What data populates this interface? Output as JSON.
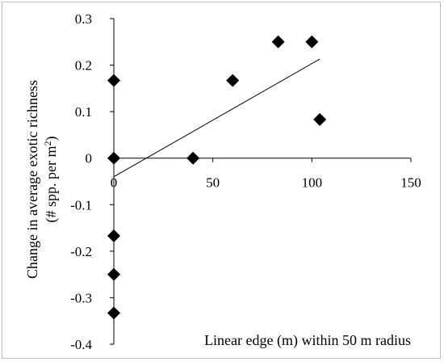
{
  "chart_data": {
    "type": "scatter",
    "title": "",
    "xlabel": "Linear edge (m) within 50 m radius",
    "ylabel_line1": "Change in average exotic richness",
    "ylabel_line2_prefix": "(# spp. per m",
    "ylabel_line2_superscript": "2",
    "ylabel_line2_suffix": ")",
    "xlim": [
      0,
      150
    ],
    "ylim": [
      -0.4,
      0.3
    ],
    "x_ticks": [
      {
        "value": 0,
        "label": "0"
      },
      {
        "value": 50,
        "label": "50"
      },
      {
        "value": 100,
        "label": "100"
      },
      {
        "value": 150,
        "label": "150"
      }
    ],
    "y_ticks": [
      {
        "value": 0.3,
        "label": "0.3"
      },
      {
        "value": 0.2,
        "label": "0.2"
      },
      {
        "value": 0.1,
        "label": "0.1"
      },
      {
        "value": 0,
        "label": "0"
      },
      {
        "value": -0.1,
        "label": "-0.1"
      },
      {
        "value": -0.2,
        "label": "-0.2"
      },
      {
        "value": -0.3,
        "label": "-0.3"
      },
      {
        "value": -0.4,
        "label": "-0.4"
      }
    ],
    "grid": false,
    "legend": "none",
    "marker": "diamond",
    "marker_color": "#000000",
    "points": [
      {
        "x": 0,
        "y": 0.167
      },
      {
        "x": 0,
        "y": 0
      },
      {
        "x": 0,
        "y": -0.167
      },
      {
        "x": 0,
        "y": -0.25
      },
      {
        "x": 0,
        "y": -0.333
      },
      {
        "x": 40,
        "y": 0
      },
      {
        "x": 60,
        "y": 0.167
      },
      {
        "x": 83,
        "y": 0.25
      },
      {
        "x": 100,
        "y": 0.25
      },
      {
        "x": 104,
        "y": 0.083
      }
    ],
    "trendline": {
      "type": "linear",
      "x": [
        0,
        104
      ],
      "y": [
        -0.04,
        0.213
      ],
      "color": "#000000"
    }
  }
}
